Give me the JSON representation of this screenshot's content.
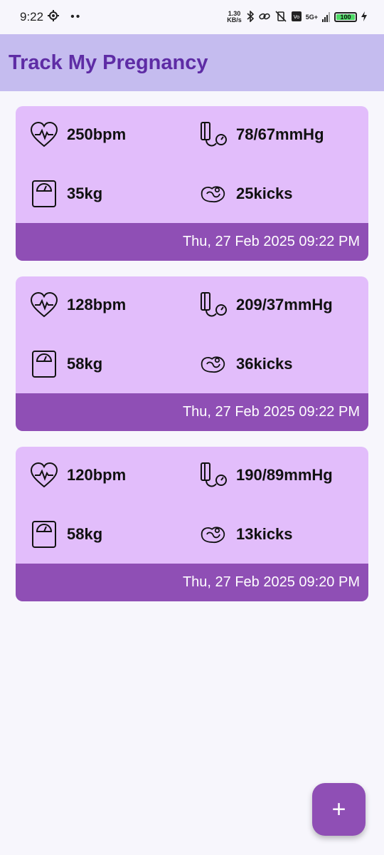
{
  "status_bar": {
    "time": "9:22",
    "net_speed_value": "1.30",
    "net_speed_unit": "KB/s",
    "network_type": "5G+",
    "battery": "100"
  },
  "app_bar": {
    "title": "Track My Pregnancy"
  },
  "records": [
    {
      "heart_rate": "250bpm",
      "blood_pressure": "78/67mmHg",
      "weight": "35kg",
      "kicks": "25kicks",
      "timestamp": "Thu, 27 Feb 2025 09:22 PM"
    },
    {
      "heart_rate": "128bpm",
      "blood_pressure": "209/37mmHg",
      "weight": "58kg",
      "kicks": "36kicks",
      "timestamp": "Thu, 27 Feb 2025 09:22 PM"
    },
    {
      "heart_rate": "120bpm",
      "blood_pressure": "190/89mmHg",
      "weight": "58kg",
      "kicks": "13kicks",
      "timestamp": "Thu, 27 Feb 2025 09:20 PM"
    }
  ],
  "fab": {
    "label": "+"
  },
  "colors": {
    "app_bar": "#c5bcef",
    "title": "#5e2ca5",
    "card": "#e2bdfb",
    "card_footer": "#8f4fb5",
    "fab": "#8f4fb5"
  },
  "icons": [
    "heart-rate-icon",
    "blood-pressure-icon",
    "weight-scale-icon",
    "baby-kicks-icon"
  ]
}
